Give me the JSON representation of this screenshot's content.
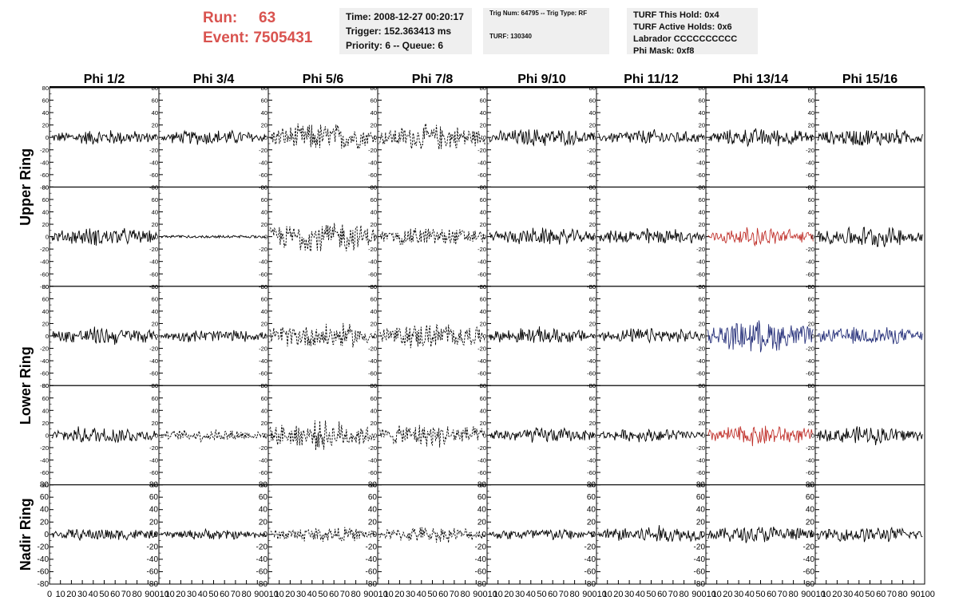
{
  "header": {
    "run_label": "Run:",
    "run_value": "63",
    "event_label": "Event:",
    "event_value": "7505431",
    "time": "Time: 2008-12-27 00:20:17",
    "trigger": "Trigger: 152.363413 ms",
    "priority": "Priority: 6 -- Queue: 6",
    "trig_num": "Trig Num: 64795 -- Trig Type: RF",
    "turf": "TURF: 130340",
    "turf_this_hold": "TURF This Hold: 0x4",
    "turf_active_holds": "TURF Active Holds: 0x6",
    "labrador": "Labrador CCCCCCCCCC",
    "phi_mask": "Phi Mask: 0xf8"
  },
  "chart_data": {
    "type": "line",
    "column_titles": [
      "Phi 1/2",
      "Phi 3/4",
      "Phi 5/6",
      "Phi 7/8",
      "Phi 9/10",
      "Phi 11/12",
      "Phi 13/14",
      "Phi 15/16"
    ],
    "ring_labels": [
      "Upper Ring",
      "Lower Ring",
      "Nadir Ring"
    ],
    "rows": 5,
    "ring_row_spans": [
      [
        0,
        1
      ],
      [
        2,
        3
      ],
      [
        4,
        4
      ]
    ],
    "ylim": [
      -80,
      80
    ],
    "xlim": [
      0,
      100
    ],
    "y_ticks": [
      80,
      60,
      40,
      20,
      0,
      -20,
      -40,
      -60,
      -80
    ],
    "x_ticks": [
      0,
      10,
      20,
      30,
      40,
      50,
      60,
      70,
      80,
      90,
      100
    ],
    "x_tick_labels_row": [
      "0",
      "10",
      "20",
      "30",
      "40",
      "50",
      "60",
      "70",
      "80",
      "90010",
      "10",
      "20",
      "30",
      "40",
      "50",
      "60",
      "70",
      "80",
      "90010",
      "10",
      "20",
      "30",
      "40",
      "50",
      "60",
      "70",
      "80",
      "90010",
      "10",
      "20",
      "30",
      "40",
      "50",
      "60",
      "70",
      "80",
      "90010",
      "10",
      "20",
      "30",
      "40",
      "50",
      "60",
      "70",
      "80",
      "90010",
      "10",
      "20",
      "30",
      "40",
      "50",
      "60",
      "70",
      "80",
      "90010",
      "10",
      "20",
      "30",
      "40",
      "50",
      "60",
      "70",
      "80",
      "90010",
      "10",
      "20",
      "30",
      "40",
      "50",
      "60",
      "70",
      "80",
      "90100"
    ],
    "colors": {
      "normal": "#000000",
      "highlight_red": "#c0302a",
      "highlight_blue": "#26307a"
    },
    "panel_styles": [
      [
        "solid",
        "solid",
        "dashed",
        "dashed",
        "solid",
        "solid",
        "solid",
        "solid"
      ],
      [
        "solid",
        "solid-flat",
        "dashed",
        "dashed",
        "solid",
        "solid",
        "red",
        "solid"
      ],
      [
        "solid",
        "solid",
        "dashed",
        "dashed",
        "solid",
        "solid",
        "blue",
        "blue"
      ],
      [
        "solid",
        "dashed",
        "dashed",
        "dashed",
        "solid",
        "solid",
        "red",
        "solid"
      ],
      [
        "solid",
        "solid",
        "dashed",
        "dashed",
        "solid",
        "solid",
        "solid",
        "solid"
      ]
    ],
    "panel_amplitudes": [
      [
        12,
        12,
        22,
        20,
        14,
        12,
        14,
        14
      ],
      [
        14,
        2,
        25,
        15,
        13,
        13,
        14,
        16
      ],
      [
        14,
        10,
        20,
        20,
        13,
        12,
        24,
        14
      ],
      [
        14,
        10,
        22,
        18,
        12,
        10,
        16,
        14
      ],
      [
        10,
        8,
        12,
        12,
        10,
        14,
        14,
        12
      ]
    ]
  }
}
